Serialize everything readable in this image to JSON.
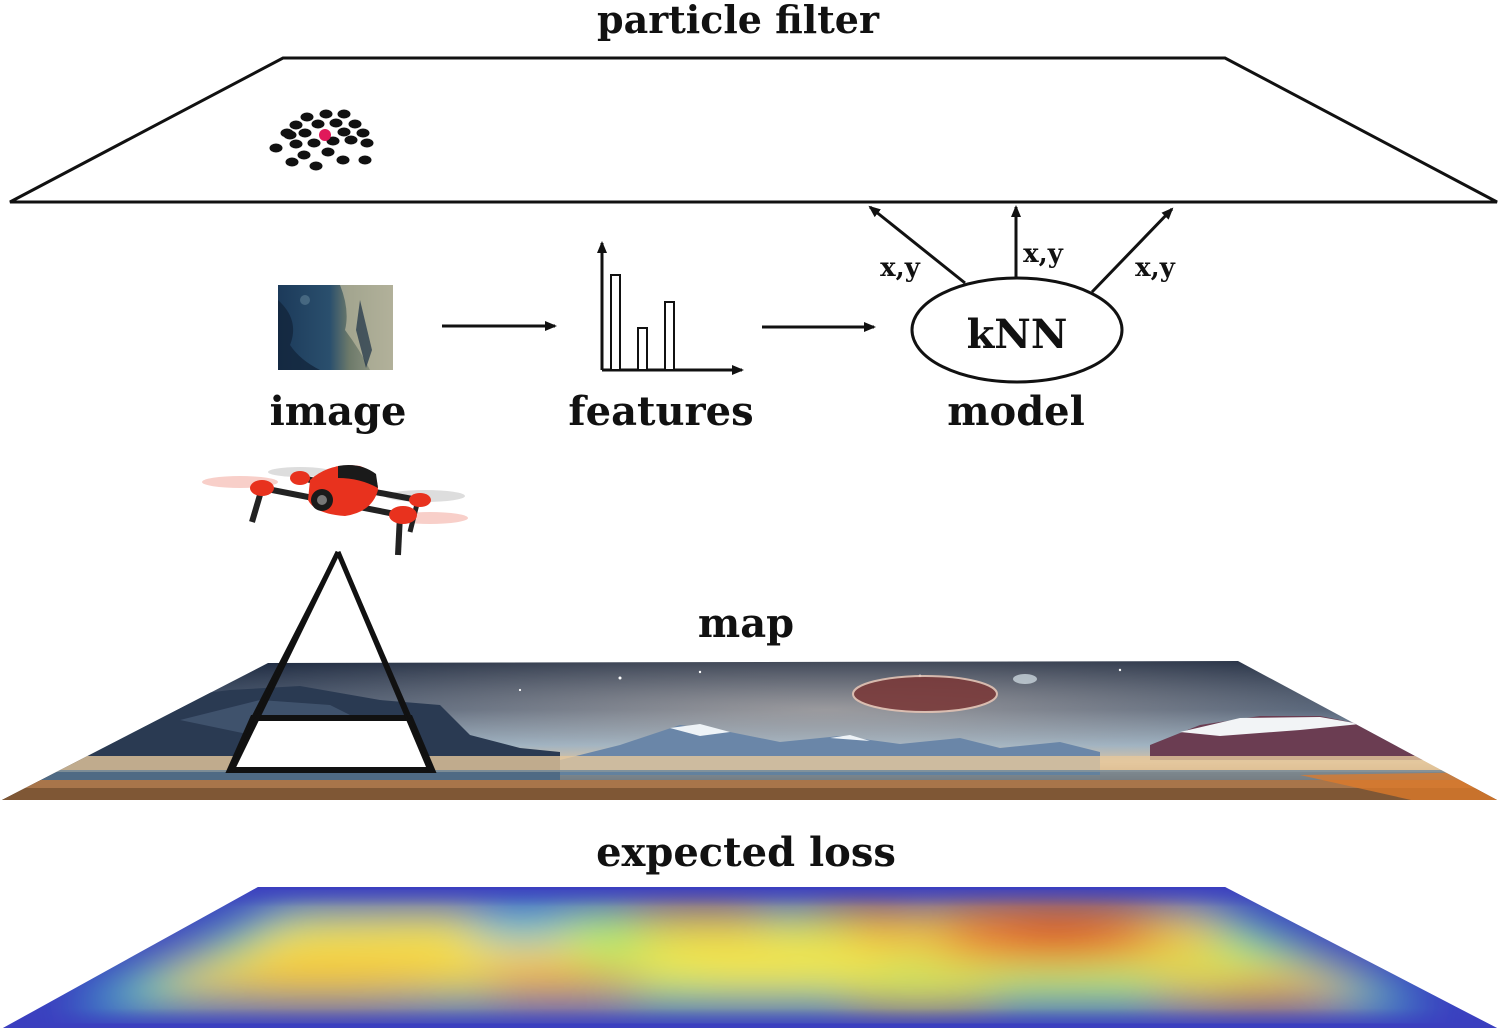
{
  "labels": {
    "particle_filter": "particle filter",
    "image": "image",
    "features": "features",
    "model": "model",
    "knn": "kNN",
    "xy": "x,y",
    "map": "map",
    "expected_loss": "expected loss"
  },
  "colors": {
    "particle": "#111111",
    "estimate": "#e0195a",
    "drone_body": "#e8321e",
    "heatmap_low": "#3b3fbf",
    "heatmap_high": "#d8201a"
  },
  "icons": {
    "drone": "quadcopter-drone-icon",
    "camera_view": "camera-frustum-icon"
  }
}
